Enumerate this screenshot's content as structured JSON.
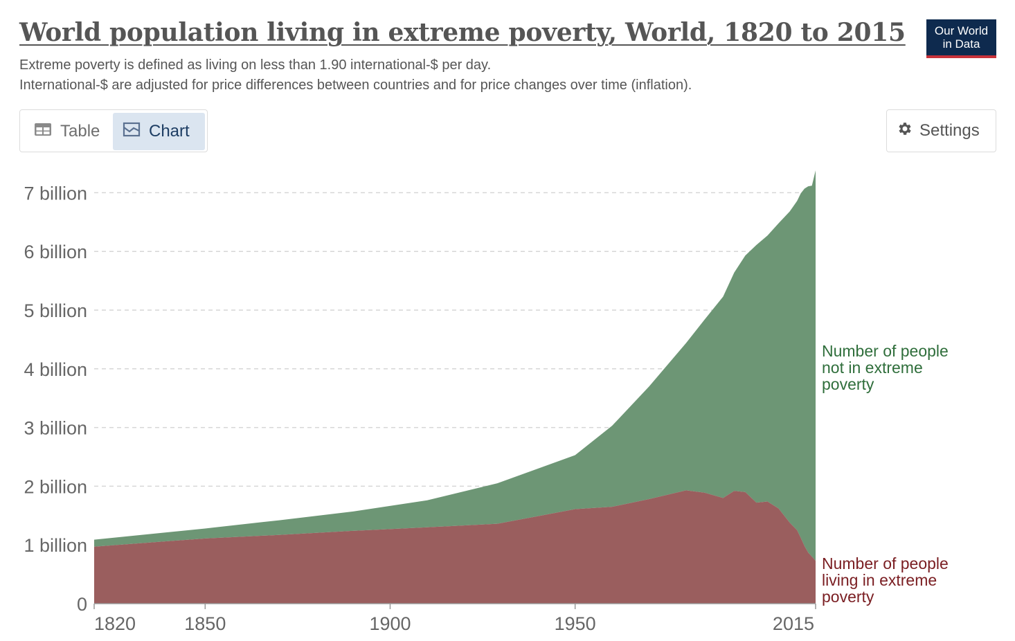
{
  "header": {
    "title": "World population living in extreme poverty, World, 1820 to 2015",
    "subtitle_line1": "Extreme poverty is defined as living on less than 1.90 international-$ per day.",
    "subtitle_line2": "International-$ are adjusted for price differences between countries and for price changes over time (inflation).",
    "logo_line1": "Our World",
    "logo_line2": "in Data"
  },
  "toolbar": {
    "tab_table": "Table",
    "tab_chart": "Chart",
    "settings_label": "Settings",
    "active_tab": "Chart"
  },
  "colors": {
    "poverty": "#9a5e5e",
    "not_poverty": "#6d9675",
    "poverty_label": "#7a1e22",
    "not_poverty_label": "#2f6e3b",
    "logo_bg": "#0e2a4e",
    "logo_accent": "#c8323a"
  },
  "icons": {
    "table": "table-icon",
    "chart": "chart-icon",
    "settings": "gear-icon"
  },
  "chart_data": {
    "type": "area",
    "stacked": true,
    "title": "World population living in extreme poverty, World, 1820 to 2015",
    "x_ticks": [
      1820,
      1850,
      1900,
      1950,
      2015
    ],
    "y_ticks": [
      0,
      1,
      2,
      3,
      4,
      5,
      6,
      7
    ],
    "y_tick_labels": [
      "0",
      "1 billion",
      "2 billion",
      "3 billion",
      "4 billion",
      "5 billion",
      "6 billion",
      "7 billion"
    ],
    "xlim": [
      1820,
      2015
    ],
    "ylim": [
      0,
      7.4
    ],
    "grid": "horizontal-dashed",
    "legend_placement": "right-end-labels",
    "x": [
      1820,
      1850,
      1870,
      1890,
      1910,
      1929,
      1950,
      1960,
      1970,
      1980,
      1985,
      1990,
      1993,
      1996,
      1999,
      2002,
      2005,
      2008,
      2010,
      2011,
      2012,
      2013,
      2014,
      2015
    ],
    "series": [
      {
        "name": "Number of people living in extreme poverty",
        "values": [
          0.97,
          1.11,
          1.17,
          1.24,
          1.3,
          1.36,
          1.61,
          1.65,
          1.78,
          1.93,
          1.89,
          1.8,
          1.92,
          1.9,
          1.72,
          1.74,
          1.62,
          1.38,
          1.25,
          1.12,
          0.98,
          0.87,
          0.8,
          0.73
        ]
      },
      {
        "name": "Number of people not in extreme poverty",
        "values": [
          0.12,
          0.17,
          0.25,
          0.33,
          0.46,
          0.69,
          0.92,
          1.38,
          1.92,
          2.51,
          2.95,
          3.43,
          3.72,
          4.03,
          4.39,
          4.53,
          4.86,
          5.3,
          5.61,
          5.87,
          6.09,
          6.24,
          6.32,
          6.65
        ]
      }
    ]
  }
}
